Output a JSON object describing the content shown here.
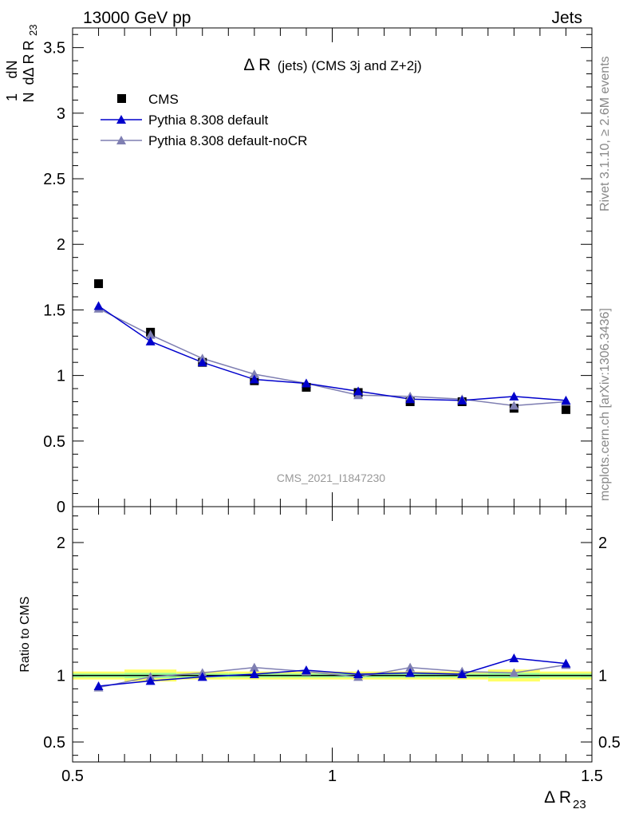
{
  "header": {
    "left": "13000 GeV pp",
    "right": "Jets"
  },
  "side_labels": {
    "top": "Rivet 3.1.10, ≥ 2.6M events",
    "bottom": "mcplots.cern.ch [arXiv:1306.3436]"
  },
  "analysis_id": "CMS_2021_I1847230",
  "colors": {
    "cms": "#000000",
    "pythia_default": "#0000cc",
    "pythia_nocr": "#7f7fb2",
    "band_outer": "#ffff66",
    "band_inner": "#99ff99"
  },
  "chart_data": [
    {
      "type": "scatter",
      "title_main": "Δ R",
      "title_sub": "(jets) (CMS 3j and Z+2j)",
      "ylabel_num": "1",
      "ylabel_den": "N",
      "ylabel_dnum": "dN",
      "ylabel_dden": "dΔ R",
      "ylabel_sub": "23",
      "xlim": [
        0.5,
        1.5
      ],
      "ylim": [
        0,
        3.65
      ],
      "yticks": [
        {
          "v": 0,
          "label": "0"
        },
        {
          "v": 0.5,
          "label": "0.5"
        },
        {
          "v": 1,
          "label": "1"
        },
        {
          "v": 1.5,
          "label": "1.5"
        },
        {
          "v": 2,
          "label": "2"
        },
        {
          "v": 2.5,
          "label": "2.5"
        },
        {
          "v": 3,
          "label": "3"
        },
        {
          "v": 3.5,
          "label": "3.5"
        }
      ],
      "x": [
        0.55,
        0.65,
        0.75,
        0.85,
        0.95,
        1.05,
        1.15,
        1.25,
        1.35,
        1.45
      ],
      "series": [
        {
          "name": "CMS",
          "values": [
            1.7,
            1.33,
            1.1,
            0.96,
            0.91,
            0.87,
            0.8,
            0.8,
            0.75,
            0.74
          ]
        },
        {
          "name": "Pythia 8.308 default",
          "values": [
            1.53,
            1.26,
            1.1,
            0.97,
            0.94,
            0.88,
            0.82,
            0.81,
            0.84,
            0.81
          ]
        },
        {
          "name": "Pythia 8.308 default-noCR",
          "values": [
            1.51,
            1.31,
            1.13,
            1.01,
            0.94,
            0.85,
            0.84,
            0.82,
            0.77,
            0.8
          ]
        }
      ]
    },
    {
      "type": "line",
      "ylabel": "Ratio to CMS",
      "xlabel_main": "Δ R",
      "xlabel_sub": "23",
      "xlim": [
        0.5,
        1.5
      ],
      "ylim": [
        0.35,
        2.27
      ],
      "xticks": [
        {
          "v": 0.5,
          "label": "0.5"
        },
        {
          "v": 1,
          "label": "1"
        },
        {
          "v": 1.5,
          "label": "1.5"
        }
      ],
      "yticks": [
        {
          "v": 0.5,
          "label": "0.5"
        },
        {
          "v": 1,
          "label": "1"
        },
        {
          "v": 2,
          "label": "2"
        }
      ],
      "x": [
        0.55,
        0.65,
        0.75,
        0.85,
        0.95,
        1.05,
        1.15,
        1.25,
        1.35,
        1.45
      ],
      "band_outer": [
        0.03,
        0.045,
        0.03,
        0.03,
        0.03,
        0.03,
        0.03,
        0.03,
        0.045,
        0.03
      ],
      "band_inner": [
        0.015,
        0.02,
        0.015,
        0.015,
        0.015,
        0.015,
        0.015,
        0.015,
        0.02,
        0.015
      ],
      "series": [
        {
          "name": "Pythia 8.308 default",
          "values": [
            0.92,
            0.96,
            0.99,
            1.01,
            1.04,
            1.01,
            1.02,
            1.01,
            1.13,
            1.09
          ]
        },
        {
          "name": "Pythia 8.308 default-noCR",
          "values": [
            0.91,
            0.99,
            1.02,
            1.06,
            1.03,
            0.99,
            1.06,
            1.03,
            1.02,
            1.08
          ]
        }
      ]
    }
  ]
}
